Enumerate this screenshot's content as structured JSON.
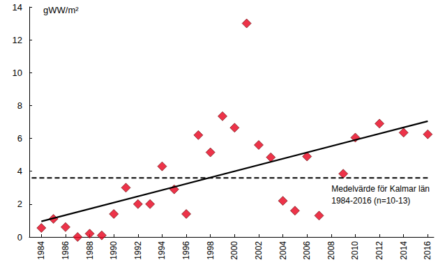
{
  "chart_data": {
    "type": "scatter",
    "y_label": "gWW/m²",
    "annotation": [
      "Medelvärde för Kalmar län",
      "1984-2016 (n=10-13)"
    ],
    "xlim": [
      1983,
      2016.5
    ],
    "xticks": [
      1984,
      1986,
      1988,
      1990,
      1992,
      1994,
      1996,
      1998,
      2000,
      2002,
      2004,
      2006,
      2008,
      2010,
      2012,
      2014,
      2016
    ],
    "ylim": [
      0,
      14
    ],
    "yticks": [
      0,
      2,
      4,
      6,
      8,
      10,
      12,
      14
    ],
    "grid": false,
    "series": [
      {
        "type": "scatter",
        "marker": "diamond",
        "color": "#e8001c",
        "x": [
          1984,
          1985,
          1986,
          1987,
          1988,
          1989,
          1990,
          1991,
          1992,
          1993,
          1994,
          1995,
          1996,
          1997,
          1998,
          1999,
          2000,
          2001,
          2002,
          2003,
          2004,
          2005,
          2006,
          2007,
          2009,
          2010,
          2012,
          2014,
          2016
        ],
        "values": [
          0.55,
          1.1,
          0.6,
          0.0,
          0.2,
          0.1,
          1.4,
          3.0,
          2.0,
          2.0,
          4.3,
          2.9,
          1.4,
          6.2,
          5.15,
          7.35,
          6.65,
          13.0,
          5.6,
          4.85,
          2.2,
          1.6,
          4.9,
          1.3,
          3.85,
          6.05,
          6.9,
          6.35,
          6.25
        ]
      },
      {
        "type": "line",
        "line_style": "solid",
        "color": "#000000",
        "x": [
          1984,
          2016
        ],
        "values": [
          0.95,
          7.05
        ]
      },
      {
        "type": "line",
        "line_style": "dashed",
        "color": "#000000",
        "x": [
          1983.2,
          2016
        ],
        "values": [
          3.6,
          3.6
        ]
      }
    ]
  }
}
